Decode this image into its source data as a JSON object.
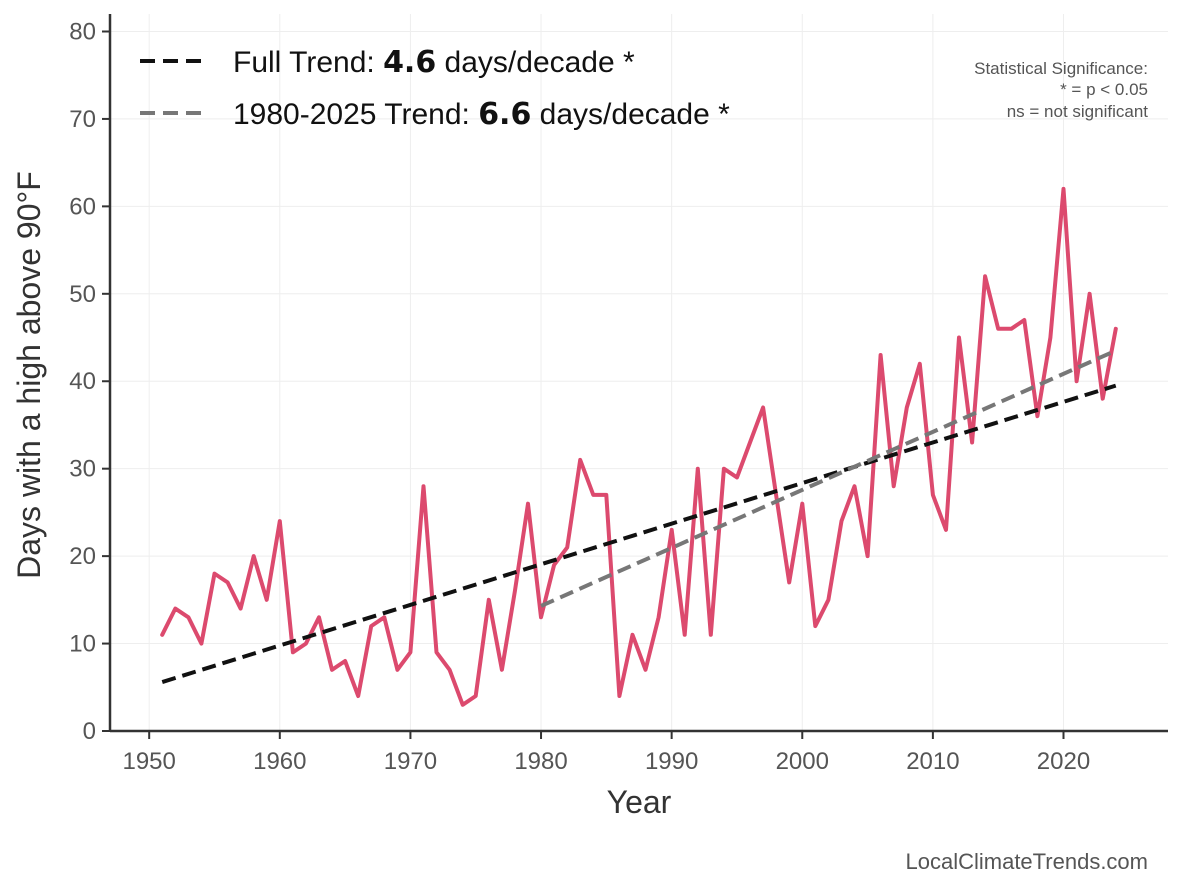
{
  "chart_data": {
    "type": "line",
    "title": "",
    "xlabel": "Year",
    "ylabel": "Days with a high above 90°F",
    "xlim": [
      1947,
      2028
    ],
    "ylim": [
      0,
      82
    ],
    "xticks": [
      1950,
      1960,
      1970,
      1980,
      1990,
      2000,
      2010,
      2020
    ],
    "yticks": [
      0,
      10,
      20,
      30,
      40,
      50,
      60,
      70,
      80
    ],
    "grid": true,
    "series": [
      {
        "name": "Days with a high above 90°F",
        "color": "#dc4a6e",
        "x": [
          1951,
          1952,
          1953,
          1954,
          1955,
          1956,
          1957,
          1958,
          1959,
          1960,
          1961,
          1962,
          1963,
          1964,
          1965,
          1966,
          1967,
          1968,
          1969,
          1970,
          1971,
          1972,
          1973,
          1974,
          1975,
          1976,
          1977,
          1978,
          1979,
          1980,
          1981,
          1982,
          1983,
          1984,
          1985,
          1986,
          1987,
          1988,
          1989,
          1990,
          1991,
          1992,
          1993,
          1994,
          1995,
          1996,
          1997,
          1998,
          1999,
          2000,
          2001,
          2002,
          2003,
          2004,
          2005,
          2006,
          2007,
          2008,
          2009,
          2010,
          2011,
          2012,
          2013,
          2014,
          2015,
          2016,
          2017,
          2018,
          2019,
          2020,
          2021,
          2022,
          2023,
          2024
        ],
        "values": [
          11,
          14,
          13,
          10,
          18,
          17,
          14,
          20,
          15,
          24,
          9,
          10,
          13,
          7,
          8,
          4,
          12,
          13,
          7,
          9,
          28,
          9,
          7,
          3,
          4,
          15,
          7,
          16,
          26,
          13,
          19,
          21,
          31,
          27,
          27,
          4,
          11,
          7,
          13,
          23,
          11,
          30,
          11,
          30,
          29,
          33,
          37,
          27,
          17,
          26,
          12,
          15,
          24,
          28,
          20,
          43,
          28,
          37,
          42,
          27,
          23,
          45,
          33,
          52,
          46,
          46,
          47,
          36,
          45,
          62,
          40,
          50,
          38,
          46
        ]
      }
    ],
    "trends": [
      {
        "name": "Full Trend",
        "prefix": "Full Trend: ",
        "value_label": "4.6",
        "suffix": " days/decade *",
        "color": "#111111",
        "x_start": 1951,
        "y_start": 5.6,
        "x_end": 2024,
        "y_end": 39.5
      },
      {
        "name": "1980-2025 Trend",
        "prefix": "1980-2025 Trend: ",
        "value_label": "6.6",
        "suffix": " days/decade *",
        "color": "#777777",
        "x_start": 1980,
        "y_start": 14.3,
        "x_end": 2024,
        "y_end": 43.5
      }
    ],
    "legend_position": "top-left"
  },
  "significance_note": {
    "line1": "Statistical Significance:",
    "line2": "* = p < 0.05",
    "line3": "ns = not significant"
  },
  "credit": "LocalClimateTrends.com"
}
